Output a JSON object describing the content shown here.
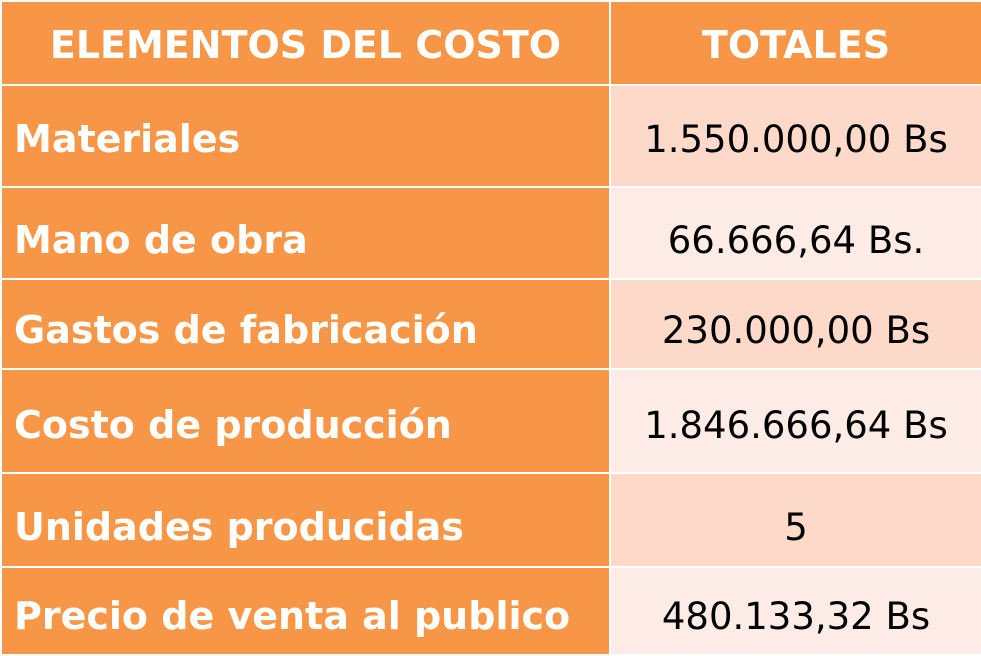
{
  "table": {
    "headers": {
      "label": "ELEMENTOS DEL COSTO",
      "total": "TOTALES"
    },
    "rows": [
      {
        "label": "Materiales",
        "value": "1.550.000,00  Bs"
      },
      {
        "label": "Mano de obra",
        "value": "66.666,64 Bs."
      },
      {
        "label": "Gastos de fabricación",
        "value": "230.000,00 Bs"
      },
      {
        "label": "Costo de producción",
        "value": "1.846.666,64 Bs"
      },
      {
        "label": "Unidades producidas",
        "value": "5"
      },
      {
        "label": "Precio de venta al publico",
        "value": "480.133,32 Bs"
      }
    ]
  },
  "colors": {
    "header_and_label": "#f79646",
    "value_band_dark": "#fcd9c9",
    "value_band_light": "#fdebe6",
    "header_text": "#ffffff",
    "value_text": "#000000"
  }
}
